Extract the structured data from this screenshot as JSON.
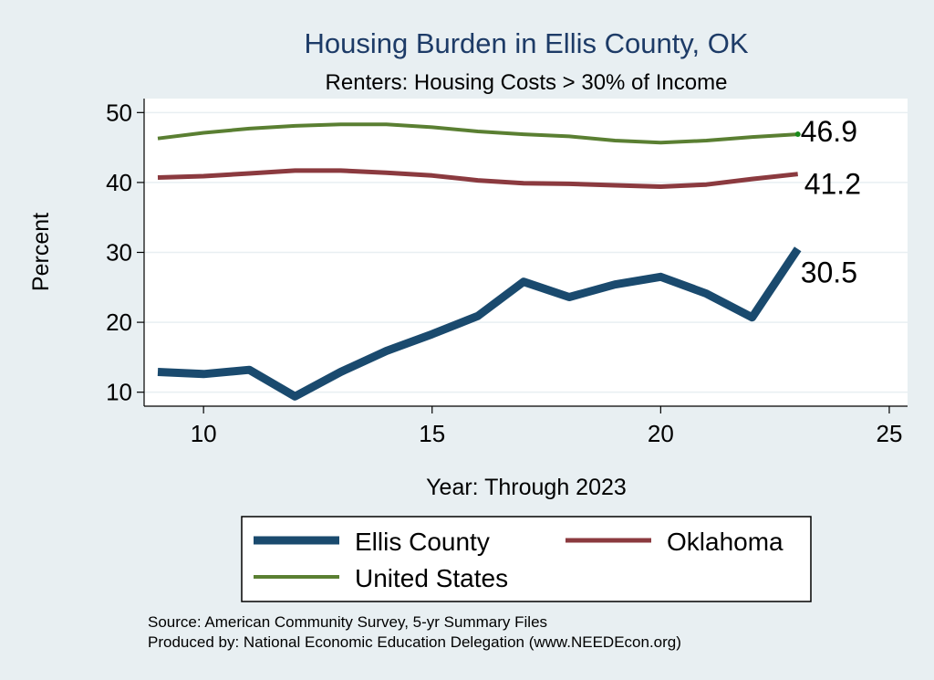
{
  "chart_data": {
    "type": "line",
    "title": "Housing Burden in Ellis County, OK",
    "subtitle": "Renters: Housing Costs > 30% of Income",
    "xlabel": "Year: Through 2023",
    "ylabel": "Percent",
    "xlim": [
      8.7,
      25.4
    ],
    "ylim": [
      8,
      52
    ],
    "xticks": [
      10,
      15,
      20,
      25
    ],
    "yticks": [
      10,
      20,
      30,
      40,
      50
    ],
    "x": [
      9,
      10,
      11,
      12,
      13,
      14,
      15,
      16,
      17,
      18,
      19,
      20,
      21,
      22,
      23
    ],
    "series": [
      {
        "name": "Ellis County",
        "color": "#1a4a6e",
        "values": [
          12.9,
          12.6,
          13.2,
          9.4,
          12.9,
          15.9,
          18.3,
          20.9,
          25.8,
          23.6,
          25.4,
          26.5,
          24.1,
          20.7,
          30.5
        ],
        "end_label": "30.5"
      },
      {
        "name": "Oklahoma",
        "color": "#8b3a3f",
        "values": [
          40.7,
          40.9,
          41.3,
          41.7,
          41.7,
          41.4,
          41.0,
          40.3,
          39.9,
          39.8,
          39.6,
          39.4,
          39.7,
          40.5,
          41.2
        ],
        "end_label": "41.2"
      },
      {
        "name": "United States",
        "color": "#5a7f32",
        "values": [
          46.3,
          47.1,
          47.7,
          48.1,
          48.3,
          48.3,
          47.9,
          47.3,
          46.9,
          46.6,
          46.0,
          45.7,
          46.0,
          46.5,
          46.9
        ],
        "end_label": "46.9"
      }
    ],
    "legend_position": "bottom",
    "grid": true
  },
  "footer": {
    "source": "Source: American Community Survey, 5-yr Summary Files",
    "produced": "Produced by: National Economic Education Delegation (www.NEEDEcon.org)"
  }
}
